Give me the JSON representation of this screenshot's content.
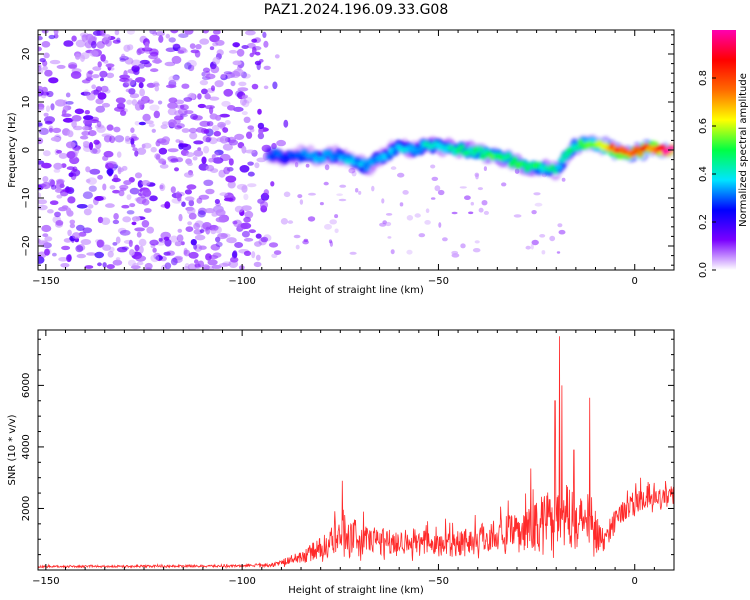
{
  "title": "PAZ1.2024.196.09.33.G08",
  "colors": {
    "snr_line": "#ff2a2a",
    "axis": "#000000",
    "background": "#ffffff"
  },
  "chart_data": [
    {
      "type": "heatmap",
      "xlabel": "Height of straight line (km)",
      "ylabel": "Frequency (Hz)",
      "xlim": [
        -152,
        10
      ],
      "ylim": [
        -25,
        25
      ],
      "xticks": [
        -150,
        -100,
        -50,
        0
      ],
      "yticks": [
        -20,
        -10,
        0,
        10,
        20
      ],
      "xticks_minor_step": 5,
      "yticks_minor_step": 2,
      "colorbar": {
        "label": "Normalized spectral amplitude",
        "range": [
          0,
          1
        ],
        "ticks": [
          0.0,
          0.2,
          0.4,
          0.6,
          0.8
        ],
        "colormap": "gist_ncar-like (purple-blue-cyan-green-yellow-red-magenta)",
        "stops": [
          "#ffffff",
          "#7a00ff",
          "#0000ff",
          "#00e5ff",
          "#00ff44",
          "#ffff00",
          "#ff6a00",
          "#ff0000",
          "#ff00b0"
        ]
      },
      "noise_region_x": [
        -150,
        -88
      ],
      "ridge": [
        {
          "x": -92,
          "y": -1.0,
          "amp": 0.28
        },
        {
          "x": -88,
          "y": -1.5,
          "amp": 0.3
        },
        {
          "x": -84,
          "y": -1.0,
          "amp": 0.32
        },
        {
          "x": -80,
          "y": -1.5,
          "amp": 0.34
        },
        {
          "x": -76,
          "y": -1.0,
          "amp": 0.35
        },
        {
          "x": -72,
          "y": -2.0,
          "amp": 0.36
        },
        {
          "x": -68,
          "y": -3.5,
          "amp": 0.36
        },
        {
          "x": -64,
          "y": -1.0,
          "amp": 0.34
        },
        {
          "x": -60,
          "y": 0.5,
          "amp": 0.36
        },
        {
          "x": -56,
          "y": 0.0,
          "amp": 0.38
        },
        {
          "x": -52,
          "y": 1.0,
          "amp": 0.4
        },
        {
          "x": -48,
          "y": 0.5,
          "amp": 0.42
        },
        {
          "x": -44,
          "y": 0.0,
          "amp": 0.44
        },
        {
          "x": -40,
          "y": -0.5,
          "amp": 0.48
        },
        {
          "x": -36,
          "y": -1.0,
          "amp": 0.5
        },
        {
          "x": -32,
          "y": -2.0,
          "amp": 0.5
        },
        {
          "x": -28,
          "y": -3.5,
          "amp": 0.48
        },
        {
          "x": -24,
          "y": -3.5,
          "amp": 0.46
        },
        {
          "x": -20,
          "y": -4.5,
          "amp": 0.42
        },
        {
          "x": -16,
          "y": 0.5,
          "amp": 0.46
        },
        {
          "x": -12,
          "y": 1.5,
          "amp": 0.55
        },
        {
          "x": -8,
          "y": 1.0,
          "amp": 0.62
        },
        {
          "x": -4,
          "y": -0.5,
          "amp": 0.85
        },
        {
          "x": 0,
          "y": -0.5,
          "amp": 0.82
        },
        {
          "x": 4,
          "y": 0.5,
          "amp": 0.8
        },
        {
          "x": 8,
          "y": 0.0,
          "amp": 0.98
        }
      ]
    },
    {
      "type": "line",
      "xlabel": "Height of straight line (km)",
      "ylabel": "SNR (10 * v/v)",
      "xlim": [
        -152,
        10
      ],
      "ylim": [
        0,
        7800
      ],
      "xticks": [
        -150,
        -100,
        -50,
        0
      ],
      "yticks": [
        2000,
        4000,
        6000
      ],
      "series": [
        {
          "color": "#ff2a2a",
          "envelope": [
            {
              "x": -152,
              "base": 100,
              "spread": 60
            },
            {
              "x": -100,
              "base": 120,
              "spread": 80
            },
            {
              "x": -92,
              "base": 150,
              "spread": 120
            },
            {
              "x": -85,
              "base": 350,
              "spread": 400
            },
            {
              "x": -78,
              "base": 700,
              "spread": 900
            },
            {
              "x": -74,
              "base": 900,
              "spread": 1500
            },
            {
              "x": -68,
              "base": 800,
              "spread": 1000
            },
            {
              "x": -60,
              "base": 800,
              "spread": 900
            },
            {
              "x": -50,
              "base": 700,
              "spread": 900
            },
            {
              "x": -42,
              "base": 800,
              "spread": 1000
            },
            {
              "x": -35,
              "base": 1000,
              "spread": 1100
            },
            {
              "x": -28,
              "base": 1000,
              "spread": 1400
            },
            {
              "x": -24,
              "base": 1300,
              "spread": 1800
            },
            {
              "x": -20,
              "base": 1600,
              "spread": 2200
            },
            {
              "x": -15,
              "base": 1300,
              "spread": 1800
            },
            {
              "x": -11,
              "base": 1300,
              "spread": 1700
            },
            {
              "x": -8,
              "base": 700,
              "spread": 900
            },
            {
              "x": -5,
              "base": 1600,
              "spread": 700
            },
            {
              "x": 0,
              "base": 2100,
              "spread": 700
            },
            {
              "x": 10,
              "base": 2300,
              "spread": 600
            }
          ],
          "peaks": [
            {
              "x": -74.5,
              "y": 2900
            },
            {
              "x": -26.5,
              "y": 3300
            },
            {
              "x": -20.3,
              "y": 5500
            },
            {
              "x": -19.2,
              "y": 7600
            },
            {
              "x": -18.6,
              "y": 6000
            },
            {
              "x": -15.5,
              "y": 3900
            },
            {
              "x": -11.5,
              "y": 5600
            },
            {
              "x": 1.5,
              "y": 3000
            },
            {
              "x": 10,
              "y": 2700
            }
          ]
        }
      ]
    }
  ]
}
